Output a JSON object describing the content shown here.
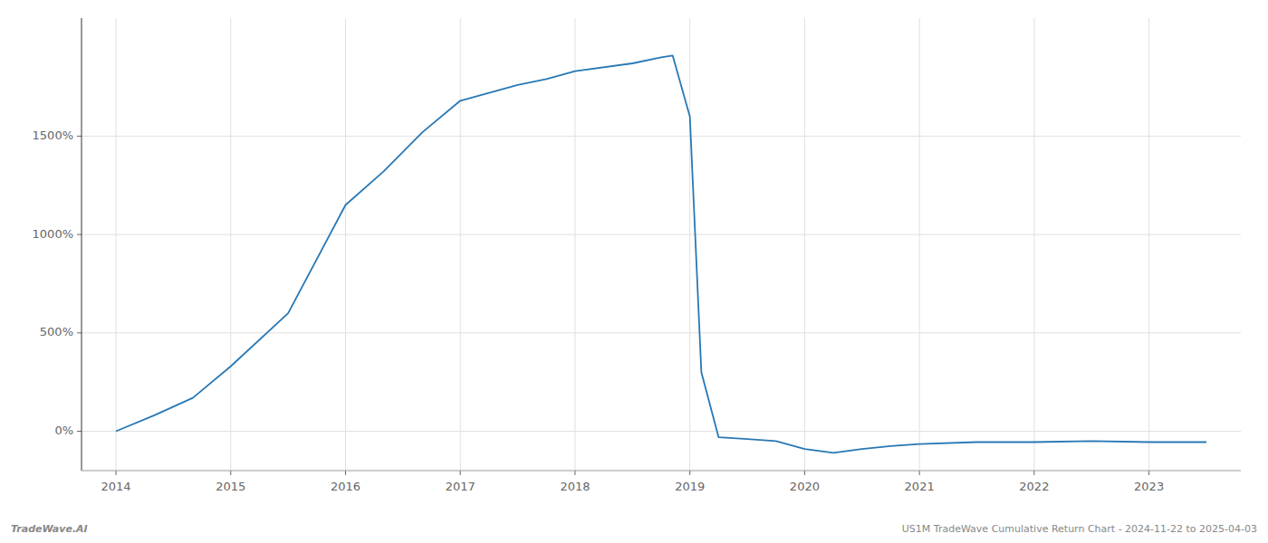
{
  "chart_data": {
    "type": "line",
    "x": [
      2014.0,
      2014.33,
      2014.67,
      2015.0,
      2015.5,
      2016.0,
      2016.33,
      2016.67,
      2017.0,
      2017.25,
      2017.5,
      2017.75,
      2018.0,
      2018.5,
      2018.75,
      2018.85,
      2019.0,
      2019.1,
      2019.25,
      2019.5,
      2019.75,
      2020.0,
      2020.25,
      2020.5,
      2020.75,
      2021.0,
      2021.5,
      2022.0,
      2022.5,
      2023.0,
      2023.5
    ],
    "values": [
      0,
      80,
      170,
      330,
      600,
      1150,
      1320,
      1520,
      1680,
      1720,
      1760,
      1790,
      1830,
      1870,
      1900,
      1910,
      1600,
      300,
      -30,
      -40,
      -50,
      -90,
      -110,
      -90,
      -75,
      -65,
      -55,
      -55,
      -50,
      -55,
      -55
    ],
    "color": "#2878b5",
    "xlim": [
      2013.7,
      2023.8
    ],
    "ylim": [
      -200,
      2100
    ],
    "xticks": [
      2014,
      2015,
      2016,
      2017,
      2018,
      2019,
      2020,
      2021,
      2022,
      2023
    ],
    "yticks": [
      {
        "value": 0,
        "label": "0%"
      },
      {
        "value": 500,
        "label": "500%"
      },
      {
        "value": 1000,
        "label": "1000%"
      },
      {
        "value": 1500,
        "label": "1500%"
      }
    ],
    "grid": true,
    "annotations": [
      "TradeWave.AI",
      "US1M TradeWave Cumulative Return Chart - 2024-11-22 to 2025-04-03"
    ]
  }
}
